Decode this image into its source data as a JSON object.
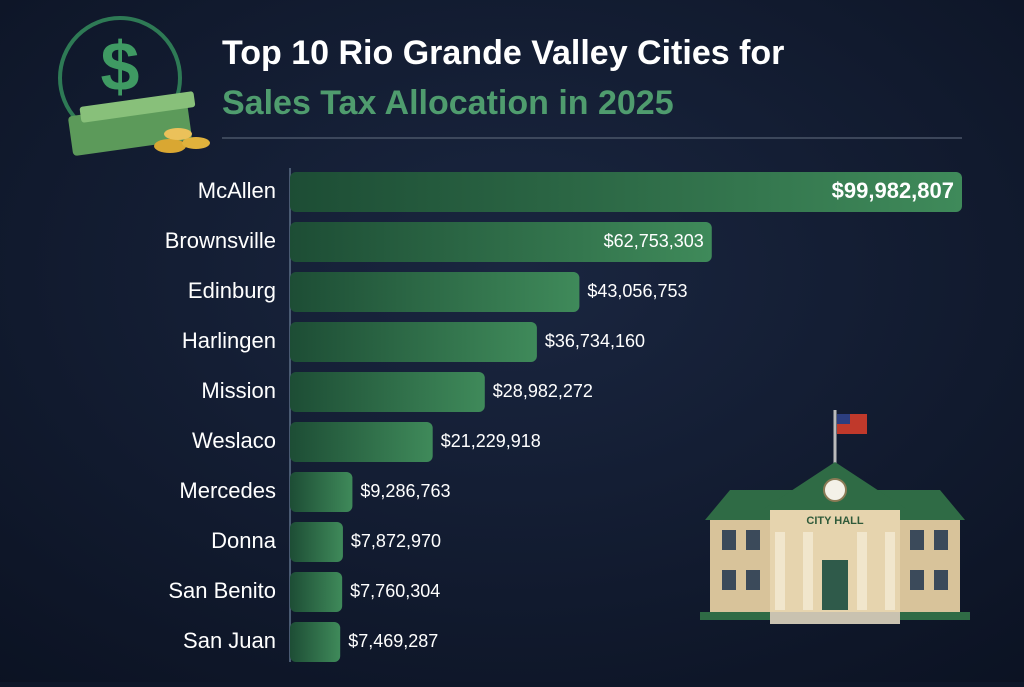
{
  "chart_data": {
    "type": "bar",
    "orientation": "horizontal",
    "title": "Top 10 Rio Grande Valley Cities for",
    "subtitle": "Sales Tax Allocation in 2025",
    "categories": [
      "McAllen",
      "Brownsville",
      "Edinburg",
      "Harlingen",
      "Mission",
      "Weslaco",
      "Mercedes",
      "Donna",
      "San Benito",
      "San Juan"
    ],
    "values": [
      99982807,
      62753303,
      43056753,
      36734160,
      28982272,
      21229918,
      9286763,
      7872970,
      7760304,
      7469287
    ],
    "value_labels": [
      "$99,982,807",
      "$62,753,303",
      "$43,056,753",
      "$36,734,160",
      "$28,982,272",
      "$21,229,918",
      "$9,286,763",
      "$7,872,970",
      "$7,760,304",
      "$7,469,287"
    ],
    "color": "#3f8a5a"
  },
  "icons": {
    "money": "$",
    "building": "CITY HALL"
  }
}
